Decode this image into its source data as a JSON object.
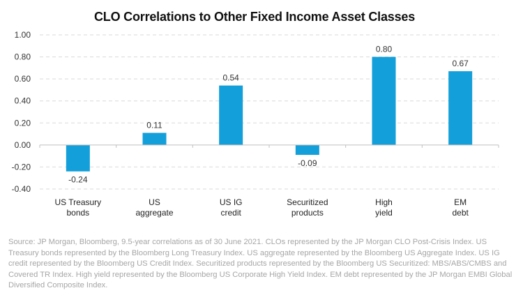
{
  "chart_data": {
    "type": "bar",
    "title": "CLO Correlations to Other Fixed Income Asset Classes",
    "xlabel": "",
    "ylabel": "",
    "categories": [
      [
        "US Treasury",
        "bonds"
      ],
      [
        "US",
        "aggregate"
      ],
      [
        "US IG",
        "credit"
      ],
      [
        "Securitized",
        "products"
      ],
      [
        "High",
        "yield"
      ],
      [
        "EM",
        "debt"
      ]
    ],
    "values": [
      -0.24,
      0.11,
      0.54,
      -0.09,
      0.8,
      0.67
    ],
    "data_labels": [
      "-0.24",
      "0.11",
      "0.54",
      "-0.09",
      "0.80",
      "0.67"
    ],
    "ylim": [
      -0.4,
      1.0
    ],
    "yticks": [
      1.0,
      0.8,
      0.6,
      0.4,
      0.2,
      0.0,
      -0.2,
      -0.4
    ],
    "ytick_labels": [
      "1.00",
      "0.80",
      "0.60",
      "0.40",
      "0.20",
      "0.00",
      "-0.20",
      "-0.40"
    ],
    "grid": true,
    "bar_color": "#139fd9",
    "legend": "none"
  },
  "footnote": "Source: JP Morgan, Bloomberg, 9.5-year correlations as of 30 June 2021. CLOs represented by the JP Morgan CLO Post-Crisis Index. US Treasury bonds represented by the Bloomberg Long Treasury Index. US aggregate represented by the Bloomberg US Aggregate Index. US IG credit represented by the Bloomberg US Credit Index. Securitized products represented by the Bloomberg US Securitized: MBS/ABS/CMBS and Covered TR Index. High yield represented by the Bloomberg US Corporate High Yield Index. EM debt represented by the JP Morgan EMBI Global Diversified Composite Index."
}
